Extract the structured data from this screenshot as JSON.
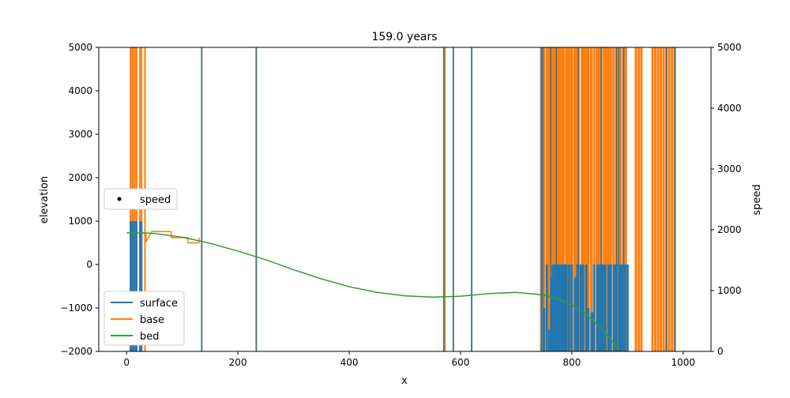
{
  "chart_data": {
    "type": "line",
    "title": "159.0 years",
    "xlabel": "x",
    "ylabel": "elevation",
    "y2label": "speed",
    "xlim": [
      -50,
      1050
    ],
    "ylim": [
      -2000,
      5000
    ],
    "y2lim": [
      0,
      5000
    ],
    "x_ticks": [
      0,
      200,
      400,
      600,
      800,
      1000
    ],
    "x_tick_labels": [
      "0",
      "200",
      "400",
      "600",
      "800",
      "1000"
    ],
    "y_ticks": [
      -2000,
      -1000,
      0,
      1000,
      2000,
      3000,
      4000,
      5000
    ],
    "y_tick_labels": [
      "−2000",
      "−1000",
      "0",
      "1000",
      "2000",
      "3000",
      "4000",
      "5000"
    ],
    "y2_ticks": [
      0,
      1000,
      2000,
      3000,
      4000,
      5000
    ],
    "y2_tick_labels": [
      "0",
      "1000",
      "2000",
      "3000",
      "4000",
      "5000"
    ],
    "grid": false,
    "legend_main": {
      "placement": "lower-left",
      "entries": [
        {
          "label": "surface",
          "color": "#1f77b4"
        },
        {
          "label": "base",
          "color": "#ff7f0e"
        },
        {
          "label": "bed",
          "color": "#2ca02c"
        }
      ]
    },
    "legend_speed": {
      "placement": "center-left",
      "entries": [
        {
          "label": "speed",
          "marker": "dot",
          "color": "#000000"
        }
      ]
    },
    "series": [
      {
        "name": "bed",
        "color": "#2ca02c",
        "x": [
          0,
          25,
          50,
          100,
          150,
          200,
          250,
          300,
          350,
          400,
          450,
          500,
          550,
          600,
          650,
          700,
          750,
          775,
          800,
          825,
          850,
          875,
          885
        ],
        "y": [
          730,
          730,
          715,
          630,
          490,
          310,
          110,
          -120,
          -330,
          -510,
          -640,
          -720,
          -750,
          -730,
          -670,
          -640,
          -700,
          -790,
          -930,
          -1140,
          -1420,
          -1800,
          -2000
        ]
      },
      {
        "name": "base",
        "color": "#ff7f0e",
        "x": [
          35,
          35,
          45,
          80,
          80,
          110,
          110,
          130,
          130
        ],
        "y": [
          720,
          520,
          760,
          760,
          620,
          620,
          500,
          500,
          620
        ]
      }
    ],
    "spikes": {
      "note": "vertical spike clusters from both surface (blue) and base (orange) lines",
      "orange_full_x": [
        7,
        10,
        12,
        15,
        18,
        24,
        27,
        33,
        135,
        233,
        570,
        572,
        587,
        620,
        745,
        748,
        750,
        755,
        758,
        762,
        765,
        768,
        772,
        775,
        778,
        782,
        785,
        790,
        793,
        797,
        800,
        805,
        808,
        812,
        818,
        822,
        826,
        830,
        835,
        840,
        845,
        849,
        853,
        858,
        862,
        866,
        870,
        875,
        880,
        884,
        888,
        893,
        897,
        915,
        920,
        925,
        945,
        950,
        955,
        960,
        965,
        970,
        975,
        980,
        985
      ],
      "blue_full_x": [
        135,
        233,
        570,
        587,
        620,
        745,
        748,
        762,
        772,
        812,
        853,
        880,
        884,
        893,
        970,
        985
      ],
      "blue_to_1000_x": [
        7,
        9,
        12,
        15,
        18,
        24,
        27
      ],
      "blue_to_0_x": [
        746,
        750,
        755,
        760,
        763,
        766,
        770,
        775,
        778,
        782,
        786,
        790,
        795,
        800,
        806,
        810,
        816,
        820,
        826,
        830,
        836,
        840,
        846,
        850,
        856,
        860,
        866,
        870,
        876,
        880,
        886,
        890,
        895,
        900
      ],
      "blue_to_0_y": [
        -2000,
        -1000,
        0,
        -1500,
        -300,
        0,
        0,
        0,
        0,
        0,
        0,
        0,
        0,
        0,
        -300,
        0,
        0,
        0,
        0,
        -1000,
        -1100,
        0,
        0,
        0,
        0,
        0,
        0,
        0,
        0,
        0,
        0,
        0,
        0,
        0
      ]
    }
  }
}
